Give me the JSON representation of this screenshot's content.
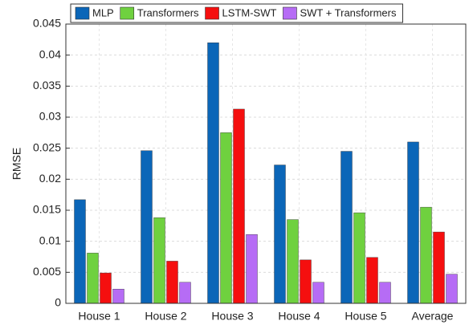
{
  "chart_data": {
    "type": "bar",
    "categories": [
      "House 1",
      "House 2",
      "House 3",
      "House 4",
      "House 5",
      "Average"
    ],
    "series": [
      {
        "name": "MLP",
        "color": "#0b66b8",
        "values": [
          0.0167,
          0.0246,
          0.042,
          0.0223,
          0.0245,
          0.026
        ]
      },
      {
        "name": "Transformers",
        "color": "#6fd13f",
        "values": [
          0.0081,
          0.0138,
          0.0275,
          0.0135,
          0.0146,
          0.0155
        ]
      },
      {
        "name": "LSTM-SWT",
        "color": "#f50f0f",
        "values": [
          0.0049,
          0.0068,
          0.0313,
          0.007,
          0.0074,
          0.0115
        ]
      },
      {
        "name": "SWT + Transformers",
        "color": "#b66cf5",
        "values": [
          0.0023,
          0.0034,
          0.0111,
          0.0034,
          0.0034,
          0.0047
        ]
      }
    ],
    "y_label": "RMSE",
    "ylim": [
      0,
      0.045
    ],
    "yticks": [
      0,
      0.005,
      0.01,
      0.015,
      0.02,
      0.025,
      0.03,
      0.035,
      0.04,
      0.045
    ],
    "grid": true,
    "legend": "top"
  }
}
